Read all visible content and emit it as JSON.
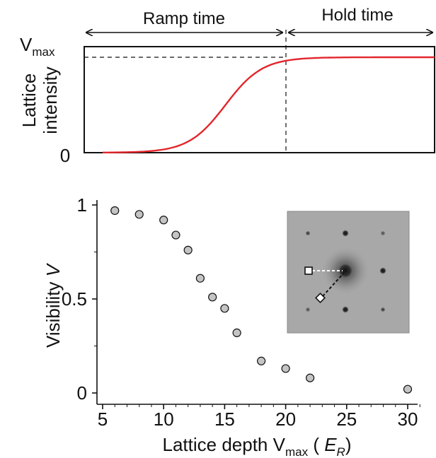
{
  "chart_data": [
    {
      "type": "line",
      "ylabel_line1": "Lattice",
      "ylabel_line2": "intensity",
      "yticks": [
        {
          "main": "0",
          "sub": ""
        },
        {
          "main": "V",
          "sub": "max"
        }
      ],
      "annotations": {
        "ramp": "Ramp time",
        "hold": "Hold time"
      },
      "ramp_fraction": 0.6,
      "ylim": [
        0,
        1
      ],
      "curve": {
        "type": "sigmoid",
        "level": 0.9,
        "midpoint": 0.37,
        "color": "#e3262c"
      }
    },
    {
      "type": "scatter",
      "xlabel_main": "Lattice depth V",
      "xlabel_sub": "max",
      "xlabel_paren_open": " ( ",
      "xlabel_unit_main": "E",
      "xlabel_unit_sub": "R",
      "xlabel_paren_close": ")",
      "ylabel_main": "Visibility ",
      "ylabel_italic": "V",
      "xlim": [
        5,
        31
      ],
      "ylim": [
        -0.02,
        1.02
      ],
      "xticks": [
        5,
        10,
        15,
        20,
        25,
        30
      ],
      "yticks": [
        0,
        0.5,
        1
      ],
      "ytick_labels": [
        "0",
        "0.5",
        "1"
      ],
      "marker_color": "#c4c4c4",
      "points": [
        {
          "x": 6,
          "y": 0.97
        },
        {
          "x": 8,
          "y": 0.95
        },
        {
          "x": 10,
          "y": 0.92
        },
        {
          "x": 11,
          "y": 0.84
        },
        {
          "x": 12,
          "y": 0.76
        },
        {
          "x": 13,
          "y": 0.61
        },
        {
          "x": 14,
          "y": 0.51
        },
        {
          "x": 15,
          "y": 0.45
        },
        {
          "x": 16,
          "y": 0.32
        },
        {
          "x": 18,
          "y": 0.17
        },
        {
          "x": 20,
          "y": 0.13
        },
        {
          "x": 22,
          "y": 0.08
        },
        {
          "x": 30,
          "y": 0.02
        }
      ]
    }
  ]
}
